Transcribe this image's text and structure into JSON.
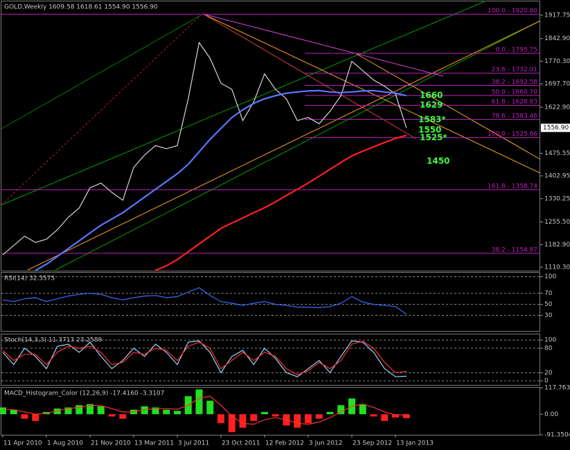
{
  "chart_data": [
    {
      "type": "line",
      "title": "GOLD,Weekly  1609.58 1618.61 1554.90 1556.90",
      "ylim": [
        1097,
        1962
      ],
      "yticks": [
        1917.75,
        {
          "value": 1842.9,
          "label": "1842.90"
        },
        {
          "value": 1770.3,
          "label": "1770.30"
        },
        {
          "value": 1697.7,
          "label": "1697.70"
        },
        {
          "value": 1622.9,
          "label": "1622.90"
        },
        1475.55,
        1402.95,
        1330.25,
        {
          "value": 1255.5,
          "label": "1255.50"
        },
        {
          "value": 1182.9,
          "label": "1182.90"
        },
        {
          "value": 1110.3,
          "label": "1110.30"
        }
      ],
      "last_price": {
        "value": 1556.9,
        "label": "1556.90"
      },
      "series": [
        {
          "color": "#d8d8d8",
          "values": [
            1150,
            1180,
            1210,
            1190,
            1200,
            1230,
            1270,
            1300,
            1365,
            1380,
            1350,
            1325,
            1430,
            1470,
            1500,
            1490,
            1500,
            1650,
            1830,
            1780,
            1700,
            1680,
            1580,
            1640,
            1730,
            1680,
            1650,
            1580,
            1590,
            1570,
            1610,
            1660,
            1770,
            1740,
            1710,
            1690,
            1665,
            1556.9
          ]
        },
        {
          "color": "#5a78ff",
          "values": [
            null,
            null,
            null,
            1100,
            1120,
            1145,
            1170,
            1195,
            1220,
            1245,
            1265,
            1285,
            1310,
            1335,
            1360,
            1385,
            1410,
            1440,
            1480,
            1520,
            1555,
            1590,
            1615,
            1635,
            1650,
            1660,
            1668,
            1672,
            1675,
            1676,
            1672,
            1670,
            1672,
            1675,
            1676,
            1672,
            1668,
            1660
          ]
        },
        {
          "color": "#ff2020",
          "values": [
            null,
            null,
            null,
            null,
            null,
            null,
            null,
            null,
            null,
            null,
            null,
            null,
            null,
            null,
            1100,
            1115,
            1135,
            1160,
            1185,
            1210,
            1235,
            1252,
            1268,
            1285,
            1301,
            1320,
            1340,
            1360,
            1380,
            1402,
            1424,
            1446,
            1467,
            1482,
            1496,
            1510,
            1523,
            1533
          ]
        }
      ],
      "fib_color": "#c020c0",
      "fib_levels": [
        {
          "label": "100.0 - 1920.80",
          "value": 1920.8
        },
        {
          "label": "0.0 - 1795.75",
          "value": 1795.75
        },
        {
          "label": "23.6 - 1732.01",
          "value": 1732.01
        },
        {
          "label": "38.2 - 1692.58",
          "value": 1692.58
        },
        {
          "label": "50.0 - 1660.70",
          "value": 1660.7
        },
        {
          "label": "61.8 - 1628.83",
          "value": 1628.83
        },
        {
          "label": "78.6 - 1583.46",
          "value": 1583.46
        },
        {
          "label": "100.0 - 1525.66",
          "value": 1525.66
        },
        {
          "label": "161.8 - 1358.74",
          "value": 1358.74
        },
        {
          "label": "38.2 - 1154.87",
          "value": 1154.87
        }
      ],
      "annotation_color": "#40ff40",
      "annotations": [
        {
          "text": "1660",
          "value": 1660
        },
        {
          "text": "1629",
          "value": 1629
        },
        {
          "text": "1583*",
          "value": 1583
        },
        {
          "text": "1550",
          "value": 1550
        },
        {
          "text": "1525*",
          "value": 1525
        },
        {
          "text": "1450",
          "value": 1450
        }
      ]
    },
    {
      "type": "line",
      "title": "RSI(14) 32.3575",
      "ylim": [
        2,
        107
      ],
      "yticks": [
        100,
        70,
        50,
        30
      ],
      "grid": true,
      "series": [
        {
          "color": "#3a6cff",
          "values": [
            58,
            55,
            60,
            62,
            55,
            60,
            65,
            68,
            70,
            68,
            62,
            58,
            62,
            65,
            66,
            62,
            64,
            72,
            80,
            66,
            55,
            52,
            48,
            52,
            55,
            50,
            48,
            45,
            45,
            44,
            46,
            52,
            64,
            54,
            50,
            48,
            46,
            32.3575
          ]
        }
      ]
    },
    {
      "type": "line",
      "title": "Stoch(14,3,3) 11.3713 23.2589",
      "ylim": [
        -10,
        114
      ],
      "yticks": [
        100,
        80,
        20,
        0
      ],
      "grid": true,
      "series": [
        {
          "color": "#9fd8ff",
          "values": [
            70,
            40,
            80,
            60,
            30,
            85,
            90,
            70,
            95,
            60,
            30,
            50,
            80,
            60,
            90,
            70,
            40,
            95,
            98,
            70,
            20,
            60,
            75,
            40,
            80,
            55,
            20,
            10,
            30,
            50,
            20,
            60,
            98,
            95,
            70,
            30,
            10,
            11.3713
          ]
        },
        {
          "color": "#ff3030",
          "values": [
            75,
            50,
            65,
            65,
            40,
            70,
            85,
            80,
            85,
            70,
            40,
            45,
            70,
            65,
            80,
            75,
            50,
            85,
            95,
            80,
            30,
            50,
            70,
            50,
            70,
            60,
            30,
            15,
            25,
            45,
            30,
            50,
            90,
            97,
            80,
            45,
            20,
            23.2589
          ]
        }
      ]
    },
    {
      "type": "bar",
      "title": "MACD_Histogram_Color (12,26,9) -17.4160 -3.3107",
      "ylim": [
        -91.3504,
        117.7639
      ],
      "yticks": [
        117.7639,
        {
          "value": 0,
          "label": "0.00"
        },
        -91.3504
      ],
      "positive_color": "#20e020",
      "negative_color": "#ff2020",
      "values": [
        30,
        20,
        -20,
        -30,
        10,
        25,
        30,
        40,
        45,
        35,
        -10,
        -20,
        20,
        35,
        30,
        20,
        15,
        80,
        110,
        60,
        -40,
        -80,
        -60,
        -30,
        10,
        -10,
        -50,
        -60,
        -40,
        -20,
        10,
        40,
        70,
        45,
        -10,
        -30,
        -15,
        -17.416
      ],
      "series": [
        {
          "color": "#ff3030",
          "values": [
            20,
            20,
            10,
            0,
            5,
            15,
            25,
            30,
            38,
            38,
            25,
            10,
            10,
            20,
            25,
            25,
            22,
            40,
            70,
            80,
            40,
            -10,
            -40,
            -45,
            -25,
            -15,
            -25,
            -40,
            -45,
            -35,
            -15,
            10,
            35,
            45,
            30,
            10,
            -3,
            -3.3107
          ]
        }
      ],
      "categories": [
        "11 Apr 2010",
        null,
        null,
        null,
        "1 Aug 2010",
        null,
        null,
        null,
        "21 Nov 2010",
        null,
        null,
        null,
        "13 Mar 2011",
        null,
        null,
        null,
        "3 Jul 2011",
        null,
        null,
        null,
        "23 Oct 2011",
        null,
        null,
        null,
        "12 Feb 2012",
        null,
        null,
        null,
        "3 Jun 2012",
        null,
        null,
        null,
        "23 Sep 2012",
        null,
        null,
        null,
        "13 Jan 2013",
        null
      ]
    }
  ]
}
